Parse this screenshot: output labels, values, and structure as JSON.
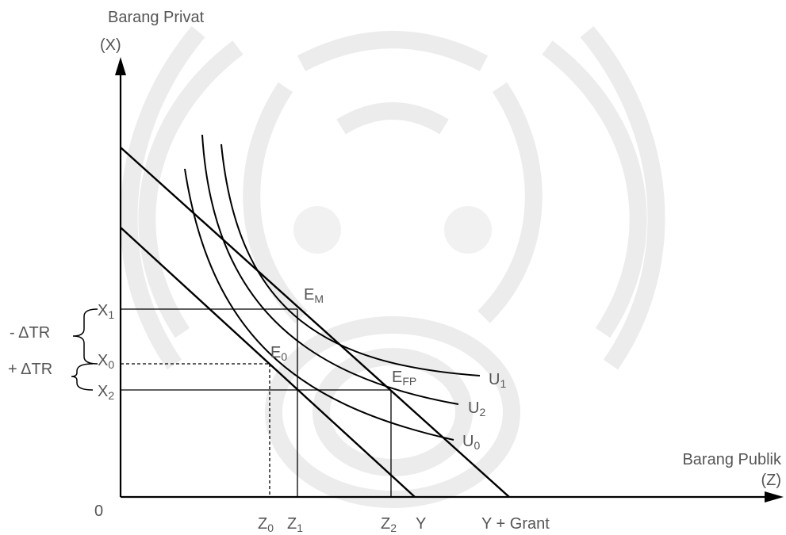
{
  "y_axis": {
    "title": "Barang Privat",
    "unit": "(X)"
  },
  "x_axis": {
    "title": "Barang Publik",
    "unit": "(Z)"
  },
  "origin_label": "0",
  "y_ticks": [
    {
      "main": "X",
      "sub": "1"
    },
    {
      "main": "X",
      "sub": "0"
    },
    {
      "main": "X",
      "sub": "2"
    }
  ],
  "x_ticks": [
    {
      "main": "Z",
      "sub": "0"
    },
    {
      "main": "Z",
      "sub": "1"
    },
    {
      "main": "Z",
      "sub": "2"
    },
    {
      "main": "Y",
      "sub": ""
    },
    {
      "main": "Y + Grant",
      "sub": ""
    }
  ],
  "points": [
    {
      "main": "E",
      "sub": "M"
    },
    {
      "main": "E",
      "sub": "0"
    },
    {
      "main": "E",
      "sub": "FP"
    }
  ],
  "curves": [
    {
      "main": "U",
      "sub": "1"
    },
    {
      "main": "U",
      "sub": "2"
    },
    {
      "main": "U",
      "sub": "0"
    }
  ],
  "braces": {
    "upper": "- ΔTR",
    "lower": "+ ΔTR"
  }
}
